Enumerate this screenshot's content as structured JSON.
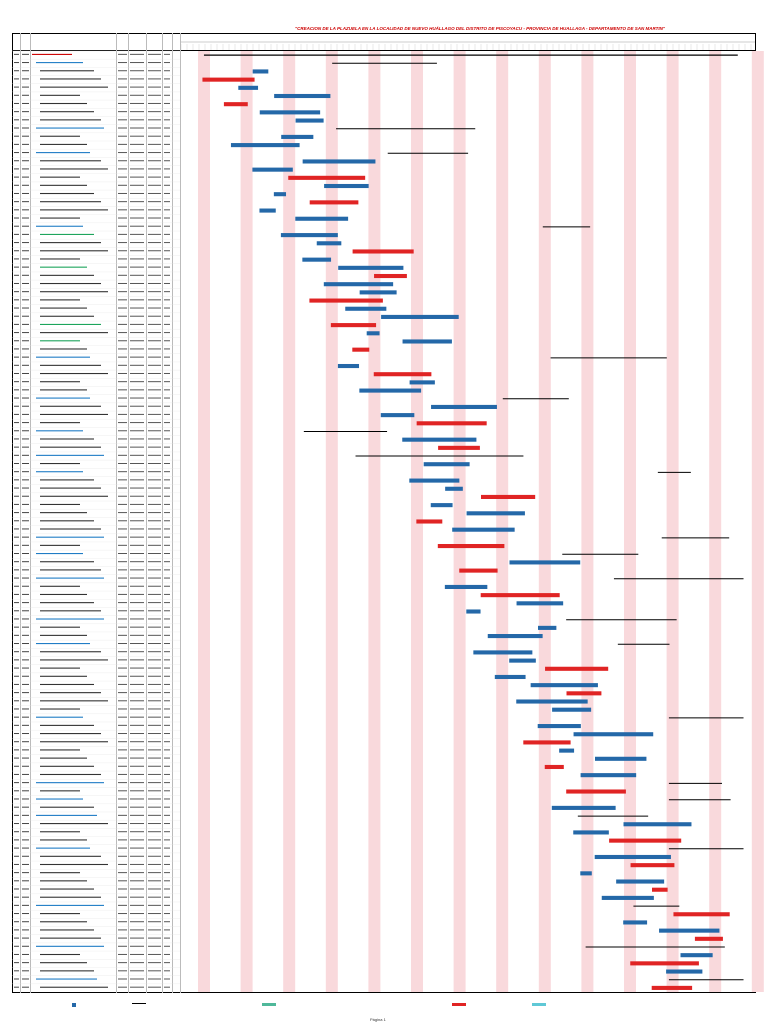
{
  "document": {
    "title": "\"CREACION DE LA PLAZUELA EN LA LOCALIDAD DE NUEVO HUÁLLAGO DEL DISTRITO DE PISCOYACU - PROVINCIA DE HUALLAGA - DEPARTAMENTO DE SAN MARTIN\"",
    "page_label": "Página 1"
  },
  "colors": {
    "task_bar": "#2468a8",
    "critical_bar": "#e02424",
    "summary_bar": "#000000",
    "weekend_band": "#f9d9dc",
    "section_text": "#1f7cc5",
    "milestone_text": "#1aa35a",
    "title_text": "#cc0000"
  },
  "rows": [
    {
      "level": 0,
      "label": "",
      "color": "red"
    },
    {
      "level": 1,
      "label": "",
      "color": "blue"
    },
    {
      "level": 2,
      "label": "",
      "color": "black"
    },
    {
      "level": 2,
      "label": "",
      "color": "black"
    },
    {
      "level": 2,
      "label": "",
      "color": "black"
    },
    {
      "level": 2,
      "label": "",
      "color": "black"
    },
    {
      "level": 2,
      "label": "",
      "color": "black"
    },
    {
      "level": 2,
      "label": "",
      "color": "black"
    },
    {
      "level": 2,
      "label": "",
      "color": "black"
    },
    {
      "level": 1,
      "label": "",
      "color": "blue"
    },
    {
      "level": 2,
      "label": "",
      "color": "black"
    },
    {
      "level": 2,
      "label": "",
      "color": "black"
    },
    {
      "level": 1,
      "label": "",
      "color": "blue"
    },
    {
      "level": 2,
      "label": "",
      "color": "black"
    },
    {
      "level": 2,
      "label": "",
      "color": "black"
    },
    {
      "level": 2,
      "label": "",
      "color": "black"
    },
    {
      "level": 2,
      "label": "",
      "color": "black"
    },
    {
      "level": 2,
      "label": "",
      "color": "black"
    },
    {
      "level": 2,
      "label": "",
      "color": "black"
    },
    {
      "level": 2,
      "label": "",
      "color": "black"
    },
    {
      "level": 2,
      "label": "",
      "color": "black"
    },
    {
      "level": 1,
      "label": "",
      "color": "blue"
    },
    {
      "level": 2,
      "label": "",
      "color": "green"
    },
    {
      "level": 2,
      "label": "",
      "color": "black"
    },
    {
      "level": 2,
      "label": "",
      "color": "black"
    },
    {
      "level": 2,
      "label": "",
      "color": "black"
    },
    {
      "level": 2,
      "label": "",
      "color": "green"
    },
    {
      "level": 2,
      "label": "",
      "color": "black"
    },
    {
      "level": 2,
      "label": "",
      "color": "black"
    },
    {
      "level": 2,
      "label": "",
      "color": "black"
    },
    {
      "level": 2,
      "label": "",
      "color": "black"
    },
    {
      "level": 2,
      "label": "",
      "color": "black"
    },
    {
      "level": 2,
      "label": "",
      "color": "black"
    },
    {
      "level": 2,
      "label": "",
      "color": "green"
    },
    {
      "level": 2,
      "label": "",
      "color": "black"
    },
    {
      "level": 2,
      "label": "",
      "color": "green"
    },
    {
      "level": 2,
      "label": "",
      "color": "black"
    },
    {
      "level": 1,
      "label": "",
      "color": "blue"
    },
    {
      "level": 2,
      "label": "",
      "color": "black"
    },
    {
      "level": 2,
      "label": "",
      "color": "black"
    },
    {
      "level": 2,
      "label": "",
      "color": "black"
    },
    {
      "level": 2,
      "label": "",
      "color": "black"
    },
    {
      "level": 1,
      "label": "",
      "color": "blue"
    },
    {
      "level": 2,
      "label": "",
      "color": "black"
    },
    {
      "level": 2,
      "label": "",
      "color": "black"
    },
    {
      "level": 2,
      "label": "",
      "color": "black"
    },
    {
      "level": 1,
      "label": "",
      "color": "blue"
    },
    {
      "level": 2,
      "label": "",
      "color": "black"
    },
    {
      "level": 2,
      "label": "",
      "color": "black"
    },
    {
      "level": 1,
      "label": "",
      "color": "blue"
    },
    {
      "level": 2,
      "label": "",
      "color": "black"
    },
    {
      "level": 1,
      "label": "",
      "color": "blue"
    },
    {
      "level": 2,
      "label": "",
      "color": "black"
    },
    {
      "level": 2,
      "label": "",
      "color": "black"
    },
    {
      "level": 2,
      "label": "",
      "color": "black"
    },
    {
      "level": 2,
      "label": "",
      "color": "black"
    },
    {
      "level": 2,
      "label": "",
      "color": "black"
    },
    {
      "level": 2,
      "label": "",
      "color": "black"
    },
    {
      "level": 2,
      "label": "",
      "color": "black"
    },
    {
      "level": 1,
      "label": "",
      "color": "blue"
    },
    {
      "level": 2,
      "label": "",
      "color": "black"
    },
    {
      "level": 1,
      "label": "",
      "color": "blue"
    },
    {
      "level": 2,
      "label": "",
      "color": "black"
    },
    {
      "level": 2,
      "label": "",
      "color": "black"
    },
    {
      "level": 1,
      "label": "",
      "color": "blue"
    },
    {
      "level": 2,
      "label": "",
      "color": "black"
    },
    {
      "level": 2,
      "label": "",
      "color": "black"
    },
    {
      "level": 2,
      "label": "",
      "color": "black"
    },
    {
      "level": 2,
      "label": "",
      "color": "black"
    },
    {
      "level": 1,
      "label": "",
      "color": "blue"
    },
    {
      "level": 2,
      "label": "",
      "color": "black"
    },
    {
      "level": 2,
      "label": "",
      "color": "black"
    },
    {
      "level": 1,
      "label": "",
      "color": "blue"
    },
    {
      "level": 2,
      "label": "",
      "color": "black"
    },
    {
      "level": 2,
      "label": "",
      "color": "black"
    },
    {
      "level": 2,
      "label": "",
      "color": "black"
    },
    {
      "level": 2,
      "label": "",
      "color": "black"
    },
    {
      "level": 2,
      "label": "",
      "color": "black"
    },
    {
      "level": 2,
      "label": "",
      "color": "black"
    },
    {
      "level": 2,
      "label": "",
      "color": "black"
    },
    {
      "level": 2,
      "label": "",
      "color": "black"
    },
    {
      "level": 1,
      "label": "",
      "color": "blue"
    },
    {
      "level": 2,
      "label": "",
      "color": "black"
    },
    {
      "level": 2,
      "label": "",
      "color": "black"
    },
    {
      "level": 2,
      "label": "",
      "color": "black"
    },
    {
      "level": 2,
      "label": "",
      "color": "black"
    },
    {
      "level": 2,
      "label": "",
      "color": "black"
    },
    {
      "level": 2,
      "label": "",
      "color": "black"
    },
    {
      "level": 2,
      "label": "",
      "color": "black"
    },
    {
      "level": 1,
      "label": "",
      "color": "blue"
    },
    {
      "level": 2,
      "label": "",
      "color": "black"
    },
    {
      "level": 1,
      "label": "",
      "color": "blue"
    },
    {
      "level": 2,
      "label": "",
      "color": "black"
    },
    {
      "level": 1,
      "label": "",
      "color": "blue"
    },
    {
      "level": 2,
      "label": "",
      "color": "black"
    },
    {
      "level": 2,
      "label": "",
      "color": "black"
    },
    {
      "level": 2,
      "label": "",
      "color": "black"
    },
    {
      "level": 1,
      "label": "",
      "color": "blue"
    },
    {
      "level": 2,
      "label": "",
      "color": "black"
    },
    {
      "level": 2,
      "label": "",
      "color": "black"
    },
    {
      "level": 2,
      "label": "",
      "color": "black"
    },
    {
      "level": 2,
      "label": "",
      "color": "black"
    },
    {
      "level": 2,
      "label": "",
      "color": "black"
    },
    {
      "level": 2,
      "label": "",
      "color": "black"
    },
    {
      "level": 1,
      "label": "",
      "color": "blue"
    },
    {
      "level": 2,
      "label": "",
      "color": "black"
    },
    {
      "level": 2,
      "label": "",
      "color": "black"
    },
    {
      "level": 2,
      "label": "",
      "color": "black"
    },
    {
      "level": 2,
      "label": "",
      "color": "black"
    },
    {
      "level": 1,
      "label": "",
      "color": "blue"
    },
    {
      "level": 2,
      "label": "",
      "color": "black"
    },
    {
      "level": 2,
      "label": "",
      "color": "black"
    },
    {
      "level": 2,
      "label": "",
      "color": "black"
    },
    {
      "level": 1,
      "label": "",
      "color": "blue"
    },
    {
      "level": 2,
      "label": "",
      "color": "black"
    }
  ]
}
